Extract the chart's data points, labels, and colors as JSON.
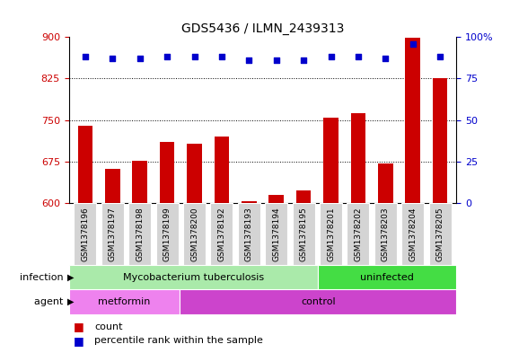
{
  "title": "GDS5436 / ILMN_2439313",
  "samples": [
    "GSM1378196",
    "GSM1378197",
    "GSM1378198",
    "GSM1378199",
    "GSM1378200",
    "GSM1378192",
    "GSM1378193",
    "GSM1378194",
    "GSM1378195",
    "GSM1378201",
    "GSM1378202",
    "GSM1378203",
    "GSM1378204",
    "GSM1378205"
  ],
  "counts": [
    740,
    662,
    676,
    710,
    707,
    720,
    603,
    615,
    622,
    754,
    762,
    672,
    898,
    826
  ],
  "percentiles": [
    88,
    87,
    87,
    88,
    88,
    88,
    86,
    86,
    86,
    88,
    88,
    87,
    96,
    88
  ],
  "ylim_left": [
    600,
    900
  ],
  "ylim_right": [
    0,
    100
  ],
  "yticks_left": [
    600,
    675,
    750,
    825,
    900
  ],
  "yticks_right": [
    0,
    25,
    50,
    75,
    100
  ],
  "bar_color": "#cc0000",
  "dot_color": "#0000cc",
  "infection_groups": [
    {
      "label": "Mycobacterium tuberculosis",
      "start": 0,
      "end": 9,
      "color": "#aaeaaa"
    },
    {
      "label": "uninfected",
      "start": 9,
      "end": 14,
      "color": "#44dd44"
    }
  ],
  "agent_groups": [
    {
      "label": "metformin",
      "start": 0,
      "end": 4,
      "color": "#ee82ee"
    },
    {
      "label": "control",
      "start": 4,
      "end": 14,
      "color": "#cc44cc"
    }
  ],
  "infection_label": "infection",
  "agent_label": "agent",
  "legend_count_label": "count",
  "legend_percentile_label": "percentile rank within the sample",
  "ticklabel_color_left": "#cc0000",
  "ticklabel_color_right": "#0000cc",
  "sample_box_color": "#d4d4d4"
}
